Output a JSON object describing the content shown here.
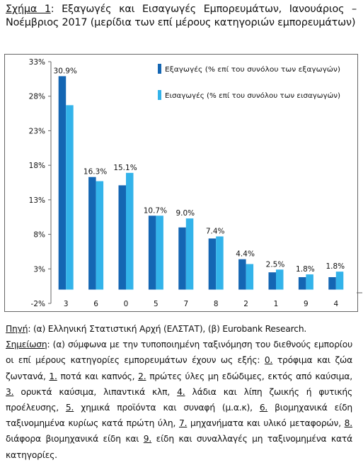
{
  "caption": {
    "label": "Σχήμα 1",
    "text": ": Εξαγωγές και Εισαγωγές Εμπορευμάτων, Ιανουάριος – Νοέμβριος 2017 (μερίδια των επί μέρους κατηγοριών εμπορευμάτων)"
  },
  "chart_data": {
    "type": "bar",
    "categories": [
      "3",
      "6",
      "0",
      "5",
      "7",
      "8",
      "2",
      "1",
      "9",
      "4"
    ],
    "series": [
      {
        "name": "Εξαγωγές (% επί του συνόλου των εξαγωγών)",
        "color": "#1466b3",
        "values": [
          30.9,
          16.3,
          15.1,
          10.7,
          9.0,
          7.4,
          4.4,
          2.5,
          1.8,
          1.8
        ]
      },
      {
        "name": "Εισαγωγές (% επί του συνόλου των εισαγωγών)",
        "color": "#33b3ea",
        "values": [
          26.7,
          15.7,
          16.9,
          10.7,
          10.3,
          7.7,
          3.7,
          2.9,
          2.2,
          2.6
        ]
      }
    ],
    "data_labels": [
      "30.9%",
      "16.3%",
      "15.1%",
      "10.7%",
      "9.0%",
      "7.4%",
      "4.4%",
      "2.5%",
      "1.8%",
      "1.8%"
    ],
    "y_ticks": [
      33,
      28,
      23,
      18,
      13,
      8,
      3,
      -2
    ],
    "y_tick_labels": [
      "33%",
      "28%",
      "23%",
      "18%",
      "13%",
      "8%",
      "3%",
      "-2%"
    ],
    "ylim": [
      -2,
      33
    ],
    "grid": false,
    "legend_position": "top-right"
  },
  "source": {
    "label": "Πηγή",
    "text": ": (α) Ελληνική Στατιστική Αρχή (ΕΛΣΤΑΤ), (β) Eurobank Research."
  },
  "note": {
    "label": "Σημείωση",
    "segments": [
      {
        "t": ": (α) σύμφωνα με την τυποποιημένη ταξινόμηση του διεθνούς εμπορίου οι επί μέρους κατηγορίες εμπορευμάτων έχουν ως εξής: ",
        "u": false
      },
      {
        "t": "0.",
        "u": true
      },
      {
        "t": " τρόφιμα και ζώα ζωντανά, ",
        "u": false
      },
      {
        "t": "1.",
        "u": true
      },
      {
        "t": " ποτά και καπνός, ",
        "u": false
      },
      {
        "t": "2.",
        "u": true
      },
      {
        "t": " πρώτες ύλες μη εδώδιμες, εκτός από καύσιμα, ",
        "u": false
      },
      {
        "t": "3.",
        "u": true
      },
      {
        "t": " ορυκτά καύσιμα, λιπαντικά κλπ, ",
        "u": false
      },
      {
        "t": "4.",
        "u": true
      },
      {
        "t": " λάδια και λίπη ζωικής ή φυτικής προέλευσης, ",
        "u": false
      },
      {
        "t": "5.",
        "u": true
      },
      {
        "t": " χημικά προϊόντα και συναφή (μ.α.κ), ",
        "u": false
      },
      {
        "t": "6.",
        "u": true
      },
      {
        "t": " βιομηχανικά είδη ταξινομημένα κυρίως κατά πρώτη ύλη, ",
        "u": false
      },
      {
        "t": "7.",
        "u": true
      },
      {
        "t": " μηχανήματα και υλικό μεταφορών, ",
        "u": false
      },
      {
        "t": "8.",
        "u": true
      },
      {
        "t": " διάφορα βιομηχανικά είδη και ",
        "u": false
      },
      {
        "t": "9.",
        "u": true
      },
      {
        "t": " είδη και συναλλαγές μη ταξινομημένα κατά κατηγορίες.",
        "u": false
      }
    ]
  }
}
